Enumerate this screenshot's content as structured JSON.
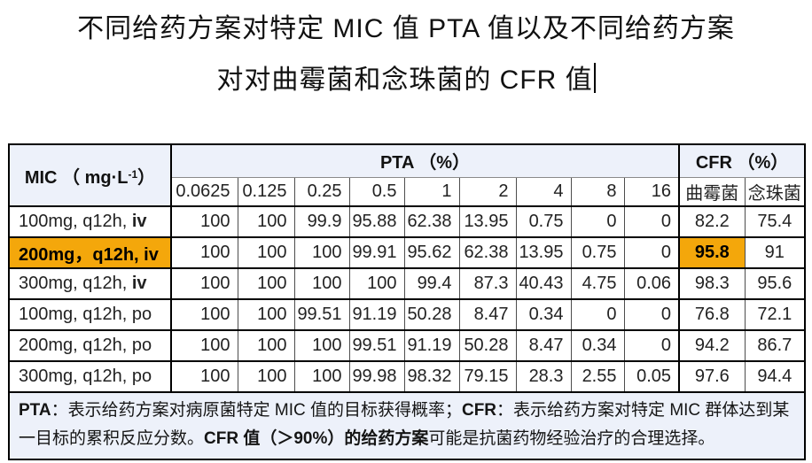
{
  "colors": {
    "highlight": "#F4A70B",
    "header_band_bg": "#EDF1FA",
    "border_dark": "#000000",
    "border_gray": "#4d4d4d"
  },
  "title": {
    "line1": "不同给药方案对特定 MIC 值 PTA 值以及不同给药方案",
    "line2": "对对曲霉菌和念珠菌的 CFR 值"
  },
  "table": {
    "mic_header": {
      "open": "MIC （ ",
      "unit": "mg·L",
      "sup": "-1",
      "close": "）"
    },
    "pta_header": "PTA （%）",
    "cfr_header": "CFR （%）",
    "mic_values": [
      "0.0625",
      "0.125",
      "0.25",
      "0.5",
      "1",
      "2",
      "4",
      "8",
      "16"
    ],
    "cfr_columns": [
      "曲霉菌",
      "念珠菌"
    ],
    "rows": [
      {
        "label_parts": [
          {
            "text": "100mg, q12h, ",
            "bold": false
          },
          {
            "text": "iv",
            "bold": true
          }
        ],
        "highlight_label": false,
        "pta": [
          "100",
          "100",
          "99.9",
          "95.88",
          "62.38",
          "13.95",
          "0.75",
          "0",
          "0"
        ],
        "cfr": [
          "82.2",
          "75.4"
        ],
        "highlight_cfr_index": -1
      },
      {
        "label_parts": [
          {
            "text": "200mg，q12h, iv",
            "bold": true
          }
        ],
        "highlight_label": true,
        "pta": [
          "100",
          "100",
          "100",
          "99.91",
          "95.62",
          "62.38",
          "13.95",
          "0.75",
          "0"
        ],
        "cfr": [
          "95.8",
          "91"
        ],
        "highlight_cfr_index": 0
      },
      {
        "label_parts": [
          {
            "text": "300mg, q12h, ",
            "bold": false
          },
          {
            "text": "iv",
            "bold": true
          }
        ],
        "highlight_label": false,
        "pta": [
          "100",
          "100",
          "100",
          "100",
          "99.4",
          "87.3",
          "40.43",
          "4.75",
          "0.06"
        ],
        "cfr": [
          "98.3",
          "95.6"
        ],
        "highlight_cfr_index": -1
      },
      {
        "label_parts": [
          {
            "text": "100mg, q12h, po",
            "bold": false
          }
        ],
        "highlight_label": false,
        "pta": [
          "100",
          "100",
          "99.51",
          "91.19",
          "50.28",
          "8.47",
          "0.34",
          "0",
          "0"
        ],
        "cfr": [
          "76.8",
          "72.1"
        ],
        "highlight_cfr_index": -1
      },
      {
        "label_parts": [
          {
            "text": "200mg, q12h, po",
            "bold": false
          }
        ],
        "highlight_label": false,
        "pta": [
          "100",
          "100",
          "100",
          "99.51",
          "91.19",
          "50.28",
          "8.47",
          "0.34",
          "0"
        ],
        "cfr": [
          "94.2",
          "86.7"
        ],
        "highlight_cfr_index": -1
      },
      {
        "label_parts": [
          {
            "text": "300mg, q12h, po",
            "bold": false
          }
        ],
        "highlight_label": false,
        "pta": [
          "100",
          "100",
          "100",
          "99.98",
          "98.32",
          "79.15",
          "28.3",
          "2.55",
          "0.05"
        ],
        "cfr": [
          "97.6",
          "94.4"
        ],
        "highlight_cfr_index": -1
      }
    ]
  },
  "footnote": {
    "parts": [
      {
        "text": "PTA",
        "bold": true
      },
      {
        "text": "：表示给药方案对病原菌特定 MIC 值的目标获得概率；",
        "bold": false
      },
      {
        "text": "CFR",
        "bold": true
      },
      {
        "text": "：表示给药方案对特定 MIC 群体达到某一目标的累积反应分数。",
        "bold": false
      },
      {
        "text": "CFR 值（＞90%）的给药方案",
        "bold": true
      },
      {
        "text": "可能是抗菌药物经验治疗的合理选择。",
        "bold": false
      }
    ]
  }
}
